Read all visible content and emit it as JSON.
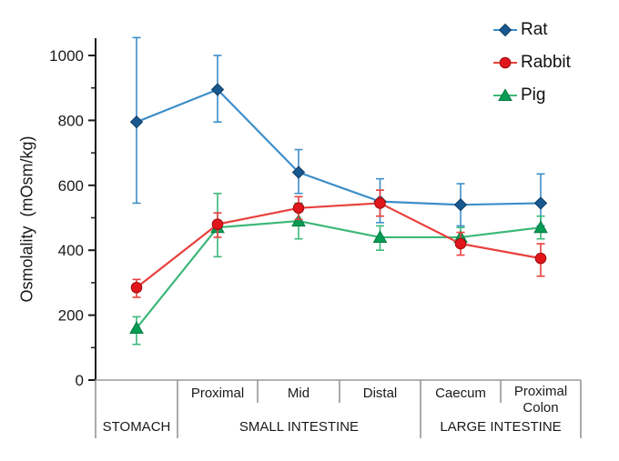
{
  "chart_data": {
    "type": "line",
    "title": "",
    "ylabel": "Osmolality  (mOsm/kg)",
    "xlabel": "",
    "grid": false,
    "legend_position": "top-right",
    "ylim": [
      0,
      1060
    ],
    "y_ticks": [
      0,
      200,
      400,
      600,
      800,
      1000
    ],
    "y_minor_ticks": [
      100,
      300,
      500,
      700,
      900
    ],
    "x_segments": {
      "tier1_labels": [
        "",
        "Proximal",
        "Mid",
        "Distal",
        "Caecum",
        "Proximal\nColon"
      ],
      "tier2_groups": [
        {
          "label": "STOMACH",
          "start": 0,
          "end": 1
        },
        {
          "label": "SMALL INTESTINE",
          "start": 1,
          "end": 4
        },
        {
          "label": "LARGE INTESTINE",
          "start": 4,
          "end": 6
        }
      ]
    },
    "series": [
      {
        "name": "Rat",
        "marker": "diamond",
        "marker_color": "#17588f",
        "marker_edge": "#123f66",
        "line_color": "#3d8ec9",
        "values": [
          795,
          895,
          640,
          550,
          540,
          545
        ],
        "err_low": [
          545,
          795,
          575,
          485,
          475,
          475
        ],
        "err_high": [
          1055,
          1000,
          710,
          620,
          605,
          635
        ]
      },
      {
        "name": "Rabbit",
        "marker": "circle",
        "marker_color": "#e0161b",
        "marker_edge": "#9e0b0e",
        "line_color": "#e8403d",
        "values": [
          285,
          480,
          530,
          545,
          420,
          375
        ],
        "err_low": [
          255,
          440,
          495,
          505,
          385,
          320
        ],
        "err_high": [
          310,
          515,
          565,
          585,
          455,
          420
        ]
      },
      {
        "name": "Pig",
        "marker": "triangle",
        "marker_color": "#089b54",
        "marker_edge": "#067a41",
        "line_color": "#3cb878",
        "values": [
          160,
          470,
          490,
          440,
          440,
          470
        ],
        "err_low": [
          110,
          380,
          435,
          400,
          415,
          435
        ],
        "err_high": [
          195,
          575,
          545,
          475,
          470,
          505
        ]
      }
    ]
  },
  "colors": {
    "axis": "#1a1a1a",
    "baseline_gray": "#9a9a9a",
    "divider_gray": "#8f8f8f",
    "text": "#111111"
  }
}
